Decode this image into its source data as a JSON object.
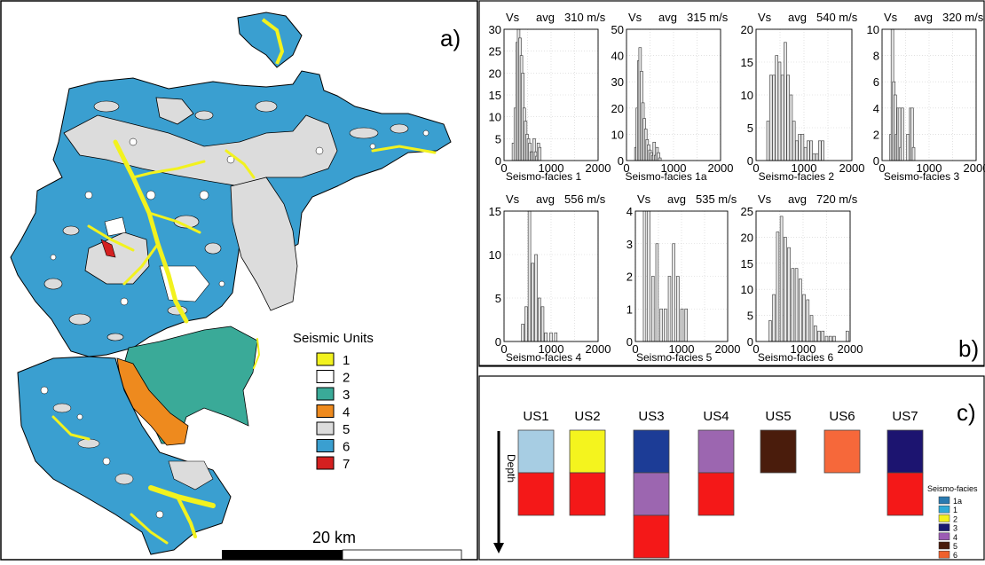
{
  "panel_a": {
    "label": "a)",
    "legend_title": "Seismic Units",
    "legend": [
      {
        "label": "1",
        "color": "#f2f21e"
      },
      {
        "label": "2",
        "color": "#ffffff"
      },
      {
        "label": "3",
        "color": "#3aaa98"
      },
      {
        "label": "4",
        "color": "#ee8a1e"
      },
      {
        "label": "5",
        "color": "#dcdcdc"
      },
      {
        "label": "6",
        "color": "#3a9fd0"
      },
      {
        "label": "7",
        "color": "#d42020"
      }
    ],
    "scale_label": "20 km"
  },
  "panel_b": {
    "label": "b)",
    "hist_fill": "#e6e6e6",
    "histograms": [
      {
        "vs": "Vs",
        "avg": "avg",
        "value": "310 m/s",
        "xlabel": "Seismo-facies 1",
        "yticks": [
          0,
          5,
          10,
          15,
          20,
          25,
          30
        ],
        "ymax": 30,
        "xticks": [
          "0",
          "1000",
          "2000"
        ],
        "bins": [
          [
            200,
            4
          ],
          [
            240,
            12
          ],
          [
            280,
            27
          ],
          [
            310,
            30
          ],
          [
            340,
            28
          ],
          [
            370,
            24
          ],
          [
            400,
            20
          ],
          [
            430,
            12
          ],
          [
            460,
            9
          ],
          [
            490,
            6
          ],
          [
            520,
            5
          ],
          [
            550,
            4
          ],
          [
            580,
            2
          ],
          [
            610,
            2
          ],
          [
            640,
            5
          ],
          [
            670,
            2
          ],
          [
            700,
            1
          ],
          [
            730,
            4
          ],
          [
            760,
            3
          ]
        ]
      },
      {
        "vs": "Vs",
        "avg": "avg",
        "value": "315 m/s",
        "xlabel": "Seismo-facies 1a",
        "yticks": [
          0,
          10,
          20,
          30,
          40,
          50
        ],
        "ymax": 50,
        "xticks": [
          "0",
          "1000",
          "2000"
        ],
        "bins": [
          [
            200,
            5
          ],
          [
            230,
            20
          ],
          [
            260,
            38
          ],
          [
            290,
            43
          ],
          [
            320,
            34
          ],
          [
            350,
            22
          ],
          [
            380,
            16
          ],
          [
            410,
            12
          ],
          [
            440,
            8
          ],
          [
            470,
            6
          ],
          [
            500,
            4
          ],
          [
            530,
            3
          ],
          [
            560,
            2
          ],
          [
            590,
            7
          ],
          [
            620,
            2
          ],
          [
            650,
            5
          ],
          [
            680,
            3
          ],
          [
            710,
            1
          ]
        ]
      },
      {
        "vs": "Vs",
        "avg": "avg",
        "value": "540 m/s",
        "xlabel": "Seismo-facies 2",
        "yticks": [
          0,
          5,
          10,
          15,
          20
        ],
        "ymax": 20,
        "xticks": [
          "0",
          "1000",
          "2000"
        ],
        "bins": [
          [
            250,
            6
          ],
          [
            310,
            13
          ],
          [
            370,
            13
          ],
          [
            430,
            16
          ],
          [
            490,
            15
          ],
          [
            550,
            13
          ],
          [
            610,
            18
          ],
          [
            670,
            13
          ],
          [
            730,
            10
          ],
          [
            790,
            6
          ],
          [
            850,
            3
          ],
          [
            910,
            4
          ],
          [
            970,
            4
          ],
          [
            1030,
            2
          ],
          [
            1090,
            3
          ],
          [
            1150,
            3
          ],
          [
            1210,
            1
          ],
          [
            1270,
            1
          ],
          [
            1330,
            3
          ],
          [
            1390,
            3
          ]
        ]
      },
      {
        "vs": "Vs",
        "avg": "avg",
        "value": "320 m/s",
        "xlabel": "Seismo-facies 3",
        "yticks": [
          0,
          2,
          4,
          6,
          8,
          10
        ],
        "ymax": 10,
        "xticks": [
          "0",
          "1000",
          "2000"
        ],
        "bins": [
          [
            190,
            2
          ],
          [
            220,
            10
          ],
          [
            250,
            6
          ],
          [
            280,
            5
          ],
          [
            310,
            2
          ],
          [
            340,
            4
          ],
          [
            370,
            4
          ],
          [
            400,
            1
          ],
          [
            430,
            4
          ],
          [
            550,
            2
          ],
          [
            610,
            4
          ],
          [
            640,
            4
          ],
          [
            670,
            1
          ]
        ]
      },
      {
        "vs": "Vs",
        "avg": "avg",
        "value": "556 m/s",
        "xlabel": "Seismo-facies 4",
        "yticks": [
          0,
          5,
          10,
          15
        ],
        "ymax": 15,
        "xticks": [
          "0",
          "1000",
          "2000"
        ],
        "bins": [
          [
            400,
            2
          ],
          [
            470,
            4
          ],
          [
            540,
            15
          ],
          [
            610,
            9
          ],
          [
            680,
            10
          ],
          [
            750,
            5
          ],
          [
            820,
            4
          ],
          [
            890,
            1
          ],
          [
            1000,
            1
          ],
          [
            1100,
            1
          ]
        ]
      },
      {
        "vs": "Vs",
        "avg": "avg",
        "value": "535 m/s",
        "xlabel": "Seismo-facies 5",
        "yticks": [
          0,
          1,
          2,
          3,
          4
        ],
        "ymax": 4,
        "xticks": [
          "0",
          "1000",
          "2000"
        ],
        "bins": [
          [
            200,
            4
          ],
          [
            290,
            4
          ],
          [
            380,
            2
          ],
          [
            470,
            3
          ],
          [
            560,
            1
          ],
          [
            650,
            1
          ],
          [
            740,
            2
          ],
          [
            830,
            3
          ],
          [
            920,
            2
          ],
          [
            1010,
            1
          ],
          [
            1100,
            1
          ]
        ]
      },
      {
        "vs": "Vs",
        "avg": "avg",
        "value": "720 m/s",
        "xlabel": "Seismo-facies 6",
        "yticks": [
          0,
          5,
          10,
          15,
          20,
          25
        ],
        "ymax": 25,
        "xticks": [
          "0",
          "1000",
          "2000"
        ],
        "bins": [
          [
            300,
            4
          ],
          [
            380,
            9
          ],
          [
            460,
            21
          ],
          [
            540,
            24
          ],
          [
            620,
            20
          ],
          [
            700,
            18
          ],
          [
            780,
            14
          ],
          [
            860,
            14
          ],
          [
            940,
            12
          ],
          [
            1020,
            9
          ],
          [
            1100,
            8
          ],
          [
            1180,
            5
          ],
          [
            1260,
            3
          ],
          [
            1340,
            2
          ],
          [
            1420,
            2
          ],
          [
            1500,
            1
          ],
          [
            1580,
            1
          ],
          [
            1660,
            1
          ],
          [
            1940,
            2
          ]
        ]
      }
    ]
  },
  "panel_c": {
    "label": "c)",
    "depth_label": "Depth",
    "legend_title": "Seismo-facies",
    "legend": [
      {
        "label": "1a",
        "color": "#2a7ab0"
      },
      {
        "label": "1",
        "color": "#30aad8"
      },
      {
        "label": "2",
        "color": "#f2f21e"
      },
      {
        "label": "3",
        "color": "#1a1a70"
      },
      {
        "label": "4",
        "color": "#9c5cb4"
      },
      {
        "label": "5",
        "color": "#4a1c0c"
      },
      {
        "label": "6",
        "color": "#f0602c"
      }
    ],
    "columns": [
      {
        "label": "US1",
        "blocks": [
          "#a7cde3",
          "#f41818"
        ]
      },
      {
        "label": "US2",
        "blocks": [
          "#f4f41e",
          "#f41818"
        ]
      },
      {
        "label": "US3",
        "blocks": [
          "#1c3c96",
          "#9c66b0",
          "#f41818"
        ]
      },
      {
        "label": "US4",
        "blocks": [
          "#9c66b0",
          "#f41818"
        ]
      },
      {
        "label": "US5",
        "blocks": [
          "#4a1c0c"
        ]
      },
      {
        "label": "US6",
        "blocks": [
          "#f6683a"
        ]
      },
      {
        "label": "US7",
        "blocks": [
          "#1c1470",
          "#f41818"
        ]
      }
    ]
  }
}
